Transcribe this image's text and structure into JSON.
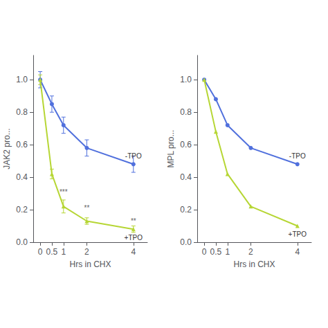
{
  "chart_data": [
    {
      "type": "line",
      "xlabel": "Hrs in CHX",
      "ylabel": "JAK2 pro...",
      "x": [
        0,
        0.5,
        1,
        2,
        4
      ],
      "xlim": [
        -0.3,
        4.6
      ],
      "xticks": [
        0,
        0.5,
        1,
        2,
        4
      ],
      "ylim": [
        0,
        1.15
      ],
      "yticks": [
        {
          "value": 0.0,
          "label": "0.0"
        },
        0.2,
        0.4,
        0.6,
        0.8,
        {
          "value": 1.0,
          "label": "1.0"
        }
      ],
      "grid": false,
      "series": [
        {
          "name": "-TPO",
          "marker": "circle",
          "values": [
            1.0,
            0.85,
            0.72,
            0.58,
            0.48
          ],
          "errors": [
            0.05,
            0.05,
            0.05,
            0.05,
            0.05
          ]
        },
        {
          "name": "+TPO",
          "marker": "triangle",
          "values": [
            1.0,
            0.42,
            0.22,
            0.13,
            0.08
          ],
          "errors": [
            0.03,
            0.03,
            0.04,
            0.02,
            0.02
          ]
        }
      ],
      "annotations": [
        {
          "text": "***",
          "x": 1,
          "y": 0.28
        },
        {
          "text": "**",
          "x": 2,
          "y": 0.18
        },
        {
          "text": "**",
          "x": 4,
          "y": 0.1
        }
      ]
    },
    {
      "type": "line",
      "xlabel": "Hrs in CHX",
      "ylabel": "MPL pro...",
      "x": [
        0,
        0.5,
        1,
        2,
        4
      ],
      "xlim": [
        -0.3,
        4.6
      ],
      "xticks": [
        0,
        0.5,
        1,
        2,
        4
      ],
      "ylim": [
        0,
        1.15
      ],
      "yticks": [
        {
          "value": 0.0,
          "label": "0.0"
        },
        0.2,
        0.4,
        0.6,
        0.8,
        {
          "value": 1.0,
          "label": "1.0"
        }
      ],
      "grid": false,
      "series": [
        {
          "name": "-TPO",
          "marker": "circle",
          "values": [
            1.0,
            0.88,
            0.72,
            0.58,
            0.48
          ]
        },
        {
          "name": "+TPO",
          "marker": "triangle",
          "values": [
            1.0,
            0.68,
            0.42,
            0.22,
            0.1
          ]
        }
      ]
    }
  ]
}
